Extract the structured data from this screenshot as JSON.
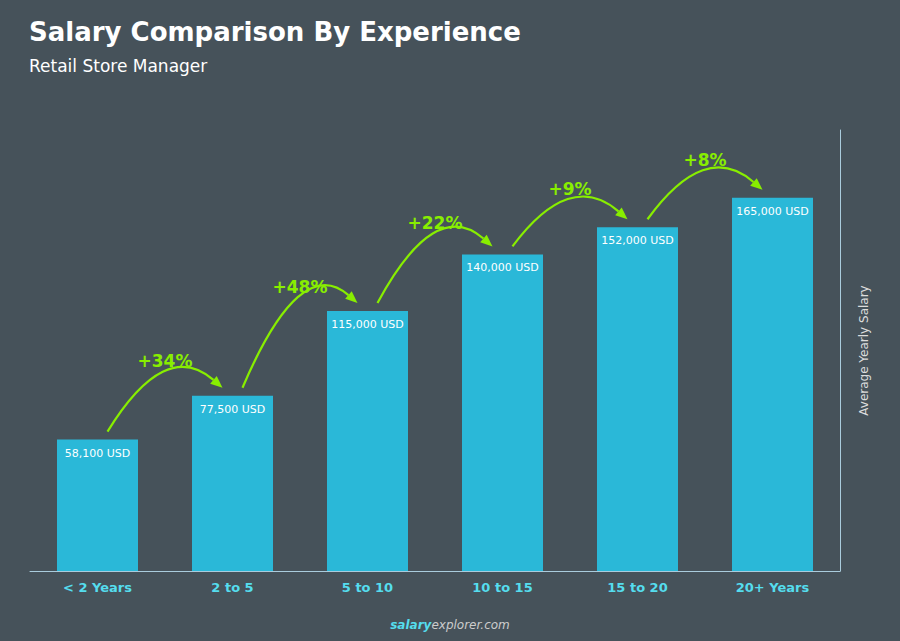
{
  "chart_data": {
    "type": "bar",
    "title": "Salary Comparison By Experience",
    "subtitle": "Retail Store Manager",
    "categories": [
      "< 2 Years",
      "2 to 5",
      "5 to 10",
      "10 to 15",
      "15 to 20",
      "20+ Years"
    ],
    "values": [
      58100,
      77500,
      115000,
      140000,
      152000,
      165000
    ],
    "value_labels": [
      "58,100 USD",
      "77,500 USD",
      "115,000 USD",
      "140,000 USD",
      "152,000 USD",
      "165,000 USD"
    ],
    "data_labels": true,
    "color": "#2ab8d8",
    "ylabel": "Average Yearly Salary",
    "ylim": [
      0,
      195000
    ],
    "tick_labels": "x",
    "grid": false,
    "annotations": [
      "+34%",
      "+48%",
      "+22%",
      "+9%",
      "+8%"
    ],
    "footer": [
      "salary",
      "explorer.com"
    ]
  }
}
